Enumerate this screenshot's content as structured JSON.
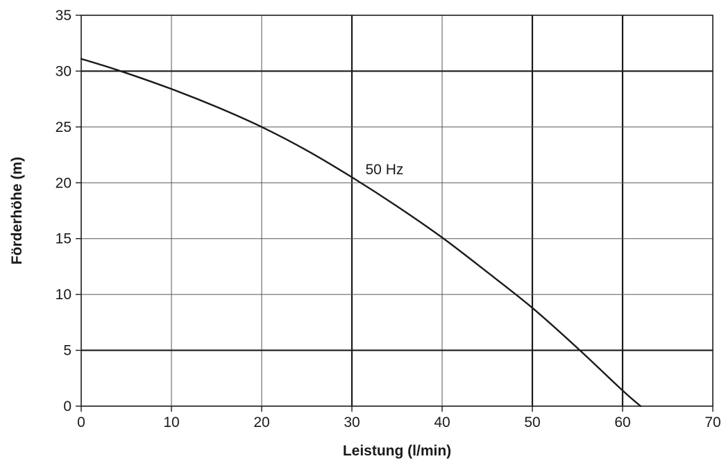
{
  "chart_data": {
    "type": "line",
    "xlabel": "Leistung (l/min)",
    "ylabel": "Förderhöhe (m)",
    "xlim": [
      0,
      70
    ],
    "ylim": [
      0,
      35
    ],
    "xticks": [
      "0",
      "10",
      "20",
      "30",
      "40",
      "50",
      "60",
      "70"
    ],
    "yticks": [
      "0",
      "5",
      "10",
      "15",
      "20",
      "25",
      "30",
      "35"
    ],
    "grid": true,
    "series": [
      {
        "name": "50 Hz",
        "x": [
          0,
          4,
          10,
          15,
          20,
          25,
          30,
          35,
          40,
          45,
          50,
          55,
          60,
          62
        ],
        "y": [
          31.1,
          30.1,
          28.4,
          26.8,
          25.0,
          22.9,
          20.5,
          17.9,
          15.1,
          12.0,
          8.8,
          5.2,
          1.4,
          0
        ]
      }
    ],
    "annotations": [
      {
        "text": "50 Hz",
        "x": 31.5,
        "y": 21.2
      }
    ]
  }
}
